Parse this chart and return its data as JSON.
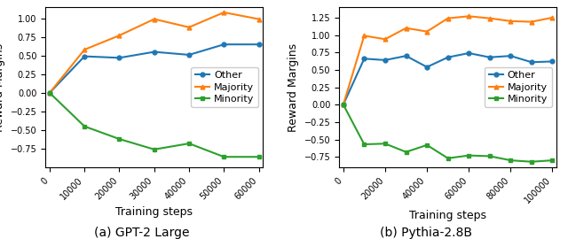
{
  "gpt2": {
    "steps": [
      0,
      10000,
      20000,
      30000,
      40000,
      50000,
      60000
    ],
    "other": [
      0.0,
      0.49,
      0.47,
      0.55,
      0.51,
      0.65,
      0.65
    ],
    "majority": [
      0.0,
      0.58,
      0.77,
      0.99,
      0.88,
      1.08,
      0.99
    ],
    "minority": [
      0.0,
      -0.45,
      -0.62,
      -0.76,
      -0.68,
      -0.86,
      -0.86
    ],
    "xlabel": "Training steps",
    "ylabel": "Reward Margins",
    "caption": "(a) GPT-2 Large",
    "ylim": [
      -1.0,
      1.15
    ],
    "yticks": [
      -0.75,
      -0.5,
      -0.25,
      0.0,
      0.25,
      0.5,
      0.75,
      1.0
    ],
    "xticks": [
      0,
      10000,
      20000,
      30000,
      40000,
      50000,
      60000
    ]
  },
  "pythia": {
    "steps": [
      0,
      10000,
      20000,
      30000,
      40000,
      50000,
      60000,
      70000,
      80000,
      90000,
      100000
    ],
    "other": [
      0.0,
      0.66,
      0.64,
      0.7,
      0.54,
      0.68,
      0.74,
      0.68,
      0.7,
      0.61,
      0.62
    ],
    "majority": [
      0.0,
      0.99,
      0.94,
      1.1,
      1.05,
      1.24,
      1.27,
      1.24,
      1.2,
      1.19,
      1.25
    ],
    "minority": [
      0.0,
      -0.57,
      -0.56,
      -0.68,
      -0.58,
      -0.77,
      -0.73,
      -0.74,
      -0.8,
      -0.82,
      -0.8
    ],
    "xlabel": "Training steps",
    "ylabel": "Reward Margins",
    "caption": "(b) Pythia-2.8B",
    "ylim": [
      -0.9,
      1.4
    ],
    "yticks": [
      -0.75,
      -0.5,
      -0.25,
      0.0,
      0.25,
      0.5,
      0.75,
      1.0,
      1.25
    ],
    "xticks": [
      0,
      20000,
      40000,
      60000,
      80000,
      100000
    ]
  },
  "colors": {
    "other": "#1f77b4",
    "majority": "#ff7f0e",
    "minority": "#2ca02c"
  },
  "markers": {
    "other": "o",
    "majority": "^",
    "minority": "s"
  },
  "markersize": 3.5,
  "linewidth": 1.5,
  "tick_fontsize": 7,
  "label_fontsize": 9,
  "legend_fontsize": 8,
  "caption_fontsize": 10
}
